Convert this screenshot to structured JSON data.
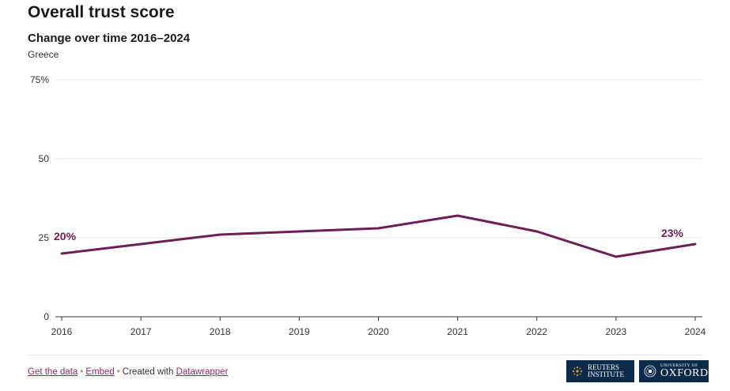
{
  "header": {
    "title": "Overall trust score",
    "subtitle": "Change over time 2016–2024",
    "region": "Greece"
  },
  "chart_data": {
    "type": "line",
    "title": "Overall trust score",
    "subtitle": "Change over time 2016–2024",
    "xlabel": "",
    "ylabel": "",
    "x": [
      2016,
      2017,
      2018,
      2019,
      2020,
      2021,
      2022,
      2023,
      2024
    ],
    "series": [
      {
        "name": "Greece",
        "values": [
          20,
          23,
          26,
          27,
          28,
          32,
          27,
          19,
          23
        ]
      }
    ],
    "ylim": [
      0,
      75
    ],
    "yticks": [
      0,
      25,
      50,
      75
    ],
    "ytick_labels": [
      "0",
      "25",
      "50",
      "75%"
    ],
    "xtick_labels": [
      "2016",
      "2017",
      "2018",
      "2019",
      "2020",
      "2021",
      "2022",
      "2023",
      "2024"
    ],
    "data_labels": [
      {
        "x": 2016,
        "text": "20%"
      },
      {
        "x": 2024,
        "text": "23%"
      }
    ],
    "grid": true,
    "line_color": "#6e1d57"
  },
  "footer": {
    "get_data": "Get the data",
    "embed": "Embed",
    "created_with": "Created with",
    "datawrapper": "Datawrapper",
    "separator": "•"
  },
  "logos": {
    "reuters_line1": "REUTERS",
    "reuters_line2": "INSTITUTE",
    "oxford_line1": "UNIVERSITY OF",
    "oxford_line2": "OXFORD",
    "background": "#0c2a4a"
  }
}
